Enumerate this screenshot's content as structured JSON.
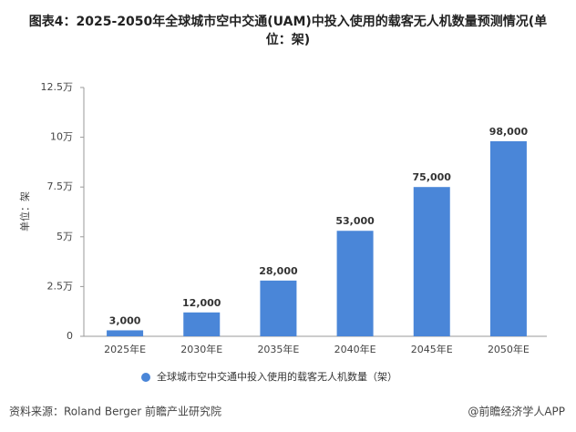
{
  "chart_data": {
    "type": "bar",
    "title": "图表4：2025-2050年全球城市空中交通(UAM)中投入使用的载客无人机数量预测情况(单位：架)",
    "y_axis_label": "单位：架",
    "categories": [
      "2025年E",
      "2030年E",
      "2035年E",
      "2040年E",
      "2045年E",
      "2050年E"
    ],
    "series": [
      {
        "name": "全球城市空中交通中投入使用的载客无人机数量（架）",
        "color": "#4a86d8",
        "values": [
          3000,
          12000,
          28000,
          53000,
          75000,
          98000
        ],
        "value_labels": [
          "3,000",
          "12,000",
          "28,000",
          "53,000",
          "75,000",
          "98,000"
        ]
      }
    ],
    "ylim": [
      0,
      125000
    ],
    "yticks": [
      0,
      {
        "value": 25000,
        "label": "2.5万"
      },
      {
        "value": 50000,
        "label": "5万"
      },
      {
        "value": 75000,
        "label": "7.5万"
      },
      {
        "value": 100000,
        "label": "10万"
      },
      {
        "value": 125000,
        "label": "12.5万"
      }
    ],
    "grid": false,
    "source": "资料来源：Roland Berger 前瞻产业研究院",
    "footer_note": "@前瞻经济学人APP"
  }
}
